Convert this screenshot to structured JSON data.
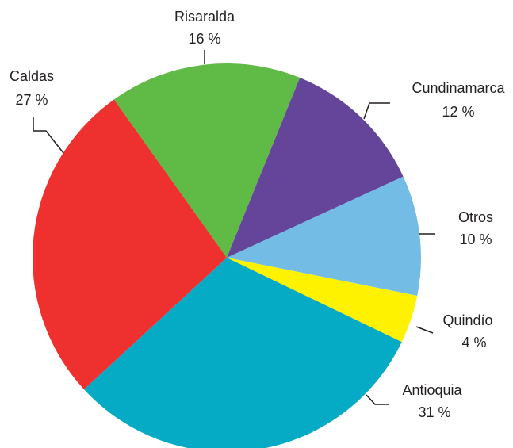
{
  "chart_data": {
    "type": "pie",
    "categories": [
      "Risaralda",
      "Cundinamarca",
      "Otros",
      "Quindío",
      "Antioquia",
      "Caldas"
    ],
    "values": [
      16,
      12,
      10,
      4,
      31,
      27
    ],
    "value_labels": [
      "16 %",
      "12 %",
      "10 %",
      "4 %",
      "31 %",
      "27 %"
    ],
    "colors": [
      "#5fba46",
      "#65459a",
      "#72bce6",
      "#fff200",
      "#05abc4",
      "#ee302f"
    ]
  }
}
